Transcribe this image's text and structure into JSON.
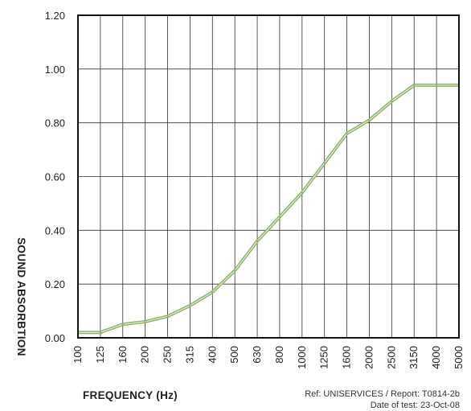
{
  "chart_data": {
    "type": "line",
    "xlabel": "FREQUENCY (Hz)",
    "ylabel": "SOUND ABSORBTION",
    "categories": [
      "100",
      "125",
      "160",
      "200",
      "250",
      "315",
      "400",
      "500",
      "630",
      "800",
      "1000",
      "1250",
      "1600",
      "2000",
      "2500",
      "3150",
      "4000",
      "5000"
    ],
    "series": [
      {
        "values": [
          0.02,
          0.02,
          0.05,
          0.06,
          0.08,
          0.12,
          0.17,
          0.25,
          0.36,
          0.45,
          0.54,
          0.65,
          0.76,
          0.81,
          0.88,
          0.94,
          0.94,
          0.94
        ]
      }
    ],
    "ylim": [
      0,
      1.2
    ],
    "yticks": [
      "0.00",
      "0.20",
      "0.40",
      "0.60",
      "0.80",
      "1.00",
      "1.20"
    ],
    "grid": true,
    "legend": "none",
    "line_color": "#8fb36a"
  },
  "notes": {
    "reference": "Ref: UNISERVICES / Report: T0814-2b",
    "date": "Date of test: 23-Oct-08"
  }
}
